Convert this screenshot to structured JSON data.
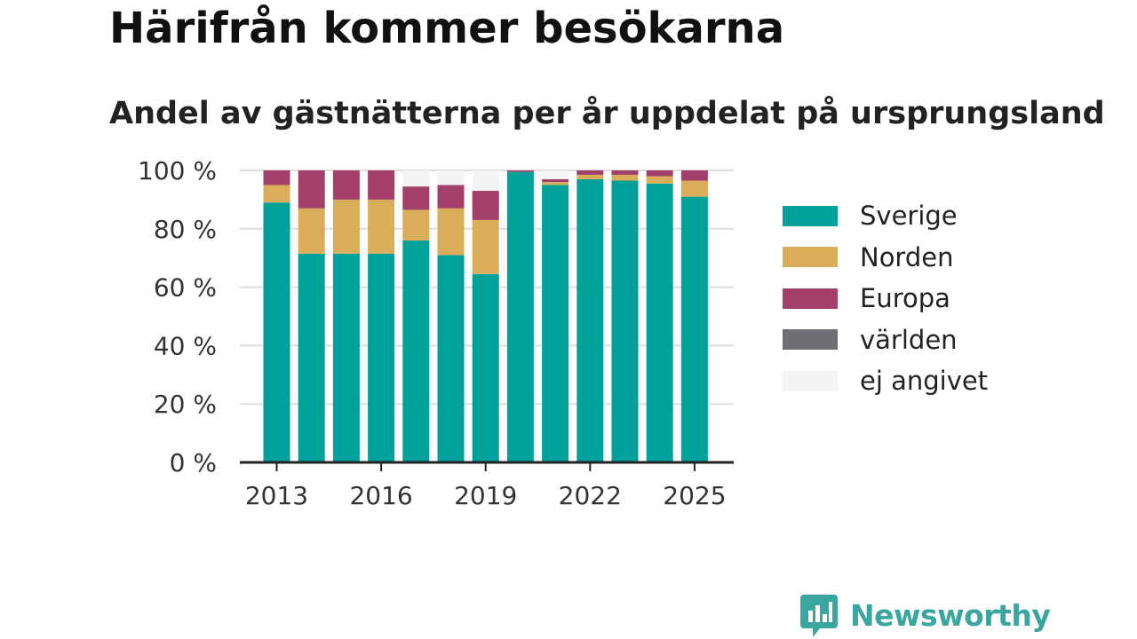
{
  "title": "Härifrån kommer besökarna",
  "subtitle": "Andel av gästnätterna per år uppdelat på ursprungsland",
  "brand": {
    "name": "Newsworthy",
    "icon": "newsworthy-logo-icon",
    "color": "#3aa6a0"
  },
  "chart_data": {
    "type": "bar",
    "stacked": true,
    "categories": [
      2013,
      2014,
      2015,
      2016,
      2017,
      2018,
      2019,
      2020,
      2021,
      2022,
      2023,
      2024,
      2025
    ],
    "x_tick_labels": [
      "2013",
      "2016",
      "2019",
      "2022",
      "2025"
    ],
    "y_tick_labels": [
      "0 %",
      "20 %",
      "40 %",
      "60 %",
      "80 %",
      "100 %"
    ],
    "ylim": [
      0,
      100
    ],
    "grid": true,
    "legend_position": "right",
    "series": [
      {
        "name": "Sverige",
        "color": "#00a19a",
        "values": [
          89,
          71.5,
          71.5,
          71.5,
          76,
          71,
          64.5,
          99.5,
          95,
          97,
          96.5,
          95.5,
          91
        ]
      },
      {
        "name": "Norden",
        "color": "#d9ad5a",
        "values": [
          6,
          15.5,
          18.5,
          18.5,
          10.5,
          16,
          18.5,
          0,
          1,
          1.5,
          2,
          2.5,
          5.5
        ]
      },
      {
        "name": "Europa",
        "color": "#a3406a",
        "values": [
          5,
          13,
          10,
          10,
          8,
          8,
          10,
          0.5,
          1,
          1.5,
          1.5,
          2,
          3.5
        ]
      },
      {
        "name": "världen",
        "color": "#6e6e75",
        "values": [
          0,
          0,
          0,
          0,
          0,
          0,
          0,
          0,
          0,
          0,
          0,
          0,
          0
        ]
      },
      {
        "name": "ej angivet",
        "color": "#f4f4f2",
        "values": [
          0,
          0,
          0,
          0,
          5.5,
          5,
          7,
          0,
          3,
          0,
          0,
          0,
          0
        ]
      }
    ]
  }
}
